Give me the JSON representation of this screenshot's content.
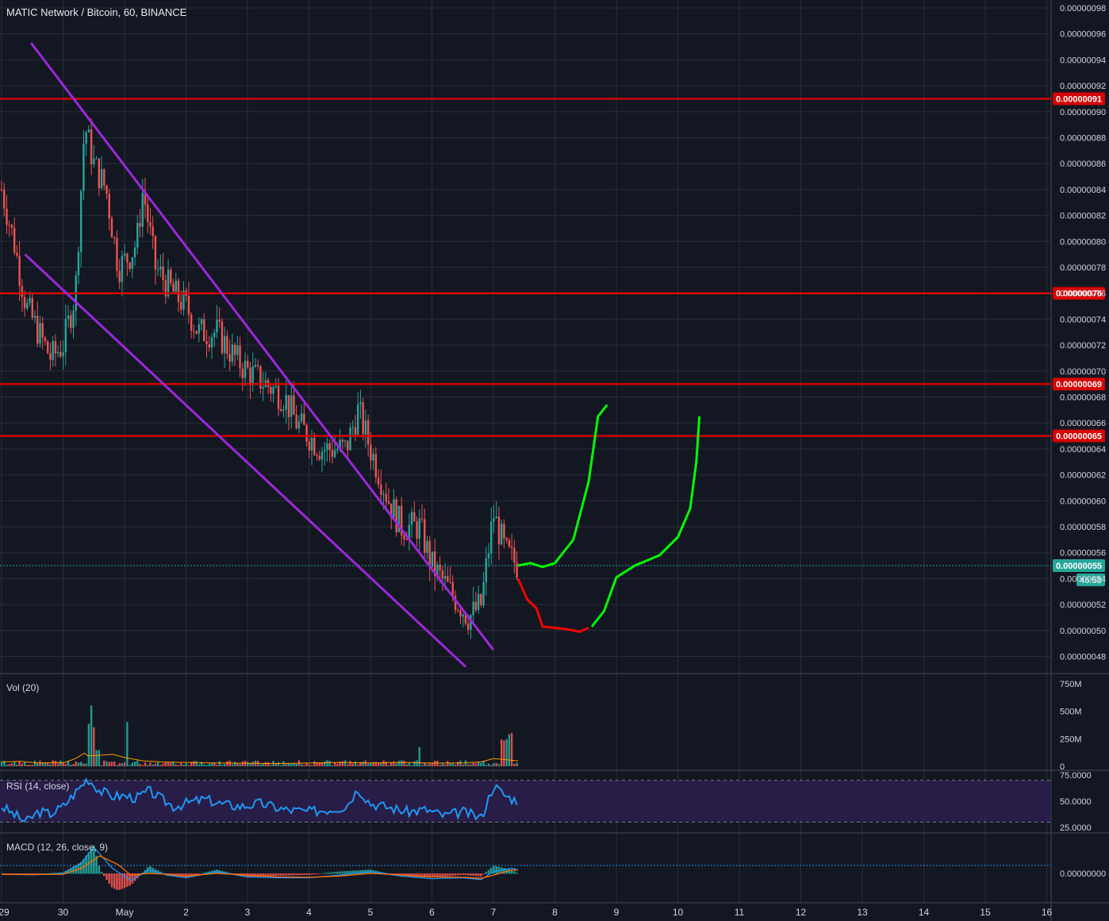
{
  "header": {
    "title": "MATIC Network / Bitcoin, 60, BINANCE"
  },
  "colors": {
    "background": "#131722",
    "grid": "#2a2e39",
    "up": "#26a69a",
    "down": "#ef5350",
    "hline": "#d40000",
    "channel": "#9c27d9",
    "proj_green": "#00ff00",
    "proj_red": "#ff0000",
    "rsi": "#2196f3",
    "rsi_band": "#2b1e4d",
    "last_price_bg": "#26a69a"
  },
  "price_axis": {
    "ticks": [
      "0.00000098",
      "0.00000096",
      "0.00000094",
      "0.00000092",
      "0.00000090",
      "0.00000088",
      "0.00000086",
      "0.00000084",
      "0.00000082",
      "0.00000080",
      "0.00000078",
      "0.00000076",
      "0.00000074",
      "0.00000072",
      "0.00000070",
      "0.00000068",
      "0.00000066",
      "0.00000064",
      "0.00000062",
      "0.00000060",
      "0.00000058",
      "0.00000056",
      "0.00000054",
      "0.00000052",
      "0.00000050",
      "0.00000048"
    ]
  },
  "time_axis": {
    "ticks": [
      "29",
      "30",
      "May",
      "2",
      "3",
      "4",
      "5",
      "6",
      "7",
      "8",
      "9",
      "10",
      "11",
      "12",
      "13",
      "14",
      "15",
      "16"
    ]
  },
  "level_labels": [
    {
      "label": "0.00000091"
    },
    {
      "label": "0.00000076"
    },
    {
      "label": "0.00000069"
    },
    {
      "label": "0.00000065"
    }
  ],
  "last_price": {
    "label": "0.00000055",
    "countdown": "46:58",
    "partial": "0.000"
  },
  "volume": {
    "label": "Vol (20)",
    "ticks": [
      "750M",
      "500M",
      "250M",
      "0"
    ]
  },
  "rsi": {
    "label": "RSI (14, close)",
    "ticks": [
      "75.0000",
      "50.0000",
      "25.0000"
    ]
  },
  "macd": {
    "label": "MACD (12, 26, close, 9)",
    "ticks": [
      "0.00000000"
    ]
  },
  "chart_data": {
    "type": "candlestick",
    "series_name": "MATIC Network / Bitcoin",
    "interval": "60",
    "ylim": [
      4.7e-07,
      9.9e-07
    ],
    "x_dates": [
      "Apr 29",
      "Apr 30",
      "May 1",
      "May 2",
      "May 3",
      "May 4",
      "May 5",
      "May 6",
      "May 7",
      "May 8",
      "May 9",
      "May 10",
      "May 11",
      "May 12",
      "May 13",
      "May 14",
      "May 15",
      "May 16"
    ],
    "horizontal_levels": [
      9.1e-07,
      7.6e-07,
      6.9e-07,
      6.5e-07
    ],
    "last_price": 5.5e-07,
    "close_path": [
      [
        0.0,
        8.4e-07
      ],
      [
        0.2,
        8e-07
      ],
      [
        0.4,
        7.5e-07
      ],
      [
        0.6,
        7.3e-07
      ],
      [
        0.8,
        7.1e-07
      ],
      [
        1.0,
        7.2e-07
      ],
      [
        1.2,
        7.6e-07
      ],
      [
        1.35,
        8.9e-07
      ],
      [
        1.5,
        8.6e-07
      ],
      [
        1.7,
        8.4e-07
      ],
      [
        1.9,
        7.8e-07
      ],
      [
        2.1,
        7.9e-07
      ],
      [
        2.2,
        8e-07
      ],
      [
        2.3,
        8.4e-07
      ],
      [
        2.5,
        7.8e-07
      ],
      [
        2.8,
        7.6e-07
      ],
      [
        3.0,
        7.5e-07
      ],
      [
        3.2,
        7.3e-07
      ],
      [
        3.5,
        7.3e-07
      ],
      [
        3.8,
        7.1e-07
      ],
      [
        4.0,
        7e-07
      ],
      [
        4.3,
        6.9e-07
      ],
      [
        4.6,
        6.8e-07
      ],
      [
        4.8,
        6.6e-07
      ],
      [
        5.2,
        6.4e-07
      ],
      [
        5.6,
        6.4e-07
      ],
      [
        5.8,
        6.7e-07
      ],
      [
        6.0,
        6.4e-07
      ],
      [
        6.3,
        6e-07
      ],
      [
        6.5,
        5.8e-07
      ],
      [
        6.8,
        5.8e-07
      ],
      [
        7.0,
        5.5e-07
      ],
      [
        7.3,
        5.3e-07
      ],
      [
        7.6,
        5.1e-07
      ],
      [
        7.8,
        5.2e-07
      ],
      [
        8.0,
        5.9e-07
      ],
      [
        8.2,
        5.6e-07
      ],
      [
        8.4,
        5.5e-07
      ]
    ],
    "channel_upper": [
      [
        0.48,
        9.53e-07
      ],
      [
        8.0,
        4.85e-07
      ]
    ],
    "channel_lower": [
      [
        0.38,
        7.9e-07
      ],
      [
        7.55,
        4.72e-07
      ]
    ],
    "channel_lower_end": [
      [
        0.38,
        7.9e-07
      ],
      [
        7.55,
        4.72e-07
      ]
    ],
    "projections": {
      "green_1": [
        [
          8.4,
          5.5e-07
        ],
        [
          8.6,
          5.52e-07
        ],
        [
          8.8,
          5.49e-07
        ],
        [
          9.0,
          5.52e-07
        ],
        [
          9.3,
          5.7e-07
        ],
        [
          9.55,
          6.15e-07
        ],
        [
          9.7,
          6.65e-07
        ],
        [
          9.85,
          6.74e-07
        ]
      ],
      "red": [
        [
          8.4,
          5.4e-07
        ],
        [
          8.55,
          5.24e-07
        ],
        [
          8.7,
          5.17e-07
        ],
        [
          8.8,
          5.03e-07
        ],
        [
          9.0,
          5.02e-07
        ],
        [
          9.2,
          5.01e-07
        ],
        [
          9.4,
          4.99e-07
        ],
        [
          9.55,
          5.02e-07
        ]
      ],
      "green_2": [
        [
          9.6,
          5.03e-07
        ],
        [
          9.8,
          5.15e-07
        ],
        [
          10.0,
          5.41e-07
        ],
        [
          10.3,
          5.5e-07
        ],
        [
          10.7,
          5.58e-07
        ],
        [
          11.0,
          5.72e-07
        ],
        [
          11.2,
          5.94e-07
        ],
        [
          11.3,
          6.3e-07
        ],
        [
          11.35,
          6.65e-07
        ]
      ]
    },
    "volume_path": [
      [
        0.0,
        40
      ],
      [
        0.3,
        45
      ],
      [
        0.6,
        30
      ],
      [
        0.9,
        35
      ],
      [
        1.0,
        30
      ],
      [
        1.2,
        70
      ],
      [
        1.35,
        120
      ],
      [
        1.4,
        95
      ],
      [
        1.6,
        100
      ],
      [
        1.8,
        110
      ],
      [
        2.0,
        80
      ],
      [
        2.3,
        50
      ],
      [
        2.6,
        40
      ],
      [
        3.0,
        35
      ],
      [
        3.5,
        30
      ],
      [
        4.0,
        28
      ],
      [
        4.5,
        25
      ],
      [
        5.0,
        30
      ],
      [
        5.5,
        35
      ],
      [
        6.0,
        30
      ],
      [
        6.5,
        35
      ],
      [
        7.0,
        30
      ],
      [
        7.5,
        30
      ],
      [
        7.8,
        40
      ],
      [
        8.0,
        70
      ],
      [
        8.2,
        60
      ],
      [
        8.4,
        50
      ]
    ],
    "rsi_path": [
      [
        0.0,
        45
      ],
      [
        0.4,
        30
      ],
      [
        0.6,
        40
      ],
      [
        0.8,
        38
      ],
      [
        1.0,
        45
      ],
      [
        1.3,
        65
      ],
      [
        1.4,
        72
      ],
      [
        1.6,
        60
      ],
      [
        1.8,
        55
      ],
      [
        2.0,
        55
      ],
      [
        2.2,
        53
      ],
      [
        2.4,
        60
      ],
      [
        2.6,
        52
      ],
      [
        2.8,
        45
      ],
      [
        3.0,
        48
      ],
      [
        3.3,
        52
      ],
      [
        3.6,
        47
      ],
      [
        3.9,
        45
      ],
      [
        4.2,
        48
      ],
      [
        4.6,
        42
      ],
      [
        5.0,
        40
      ],
      [
        5.3,
        42
      ],
      [
        5.6,
        45
      ],
      [
        5.8,
        62
      ],
      [
        6.0,
        48
      ],
      [
        6.3,
        44
      ],
      [
        6.6,
        40
      ],
      [
        6.9,
        42
      ],
      [
        7.2,
        36
      ],
      [
        7.5,
        40
      ],
      [
        7.8,
        34
      ],
      [
        8.0,
        65
      ],
      [
        8.2,
        55
      ],
      [
        8.4,
        50
      ]
    ],
    "macd_line": [
      [
        0.0,
        -0.05
      ],
      [
        0.5,
        -0.08
      ],
      [
        1.0,
        -0.02
      ],
      [
        1.3,
        0.6
      ],
      [
        1.5,
        1.5
      ],
      [
        1.8,
        0.3
      ],
      [
        2.1,
        -0.4
      ],
      [
        2.4,
        0.2
      ],
      [
        2.7,
        -0.1
      ],
      [
        3.0,
        -0.25
      ],
      [
        3.5,
        0.1
      ],
      [
        4.0,
        -0.2
      ],
      [
        4.5,
        -0.25
      ],
      [
        5.0,
        -0.25
      ],
      [
        5.5,
        -0.1
      ],
      [
        6.0,
        0.1
      ],
      [
        6.5,
        -0.15
      ],
      [
        7.0,
        -0.3
      ],
      [
        7.5,
        -0.25
      ],
      [
        7.8,
        -0.35
      ],
      [
        8.0,
        0.1
      ],
      [
        8.3,
        0.3
      ],
      [
        8.4,
        0.2
      ]
    ],
    "macd_signal": [
      [
        0.0,
        -0.05
      ],
      [
        0.5,
        -0.06
      ],
      [
        1.0,
        -0.05
      ],
      [
        1.3,
        0.3
      ],
      [
        1.6,
        1.0
      ],
      [
        1.9,
        0.5
      ],
      [
        2.1,
        -0.1
      ],
      [
        2.4,
        0.0
      ],
      [
        2.7,
        -0.05
      ],
      [
        3.0,
        -0.15
      ],
      [
        3.5,
        0.0
      ],
      [
        4.0,
        -0.1
      ],
      [
        4.5,
        -0.2
      ],
      [
        5.0,
        -0.22
      ],
      [
        5.5,
        -0.15
      ],
      [
        6.0,
        0.0
      ],
      [
        6.5,
        -0.08
      ],
      [
        7.0,
        -0.2
      ],
      [
        7.5,
        -0.22
      ],
      [
        7.8,
        -0.28
      ],
      [
        8.0,
        -0.1
      ],
      [
        8.3,
        0.2
      ],
      [
        8.4,
        0.2
      ]
    ]
  }
}
